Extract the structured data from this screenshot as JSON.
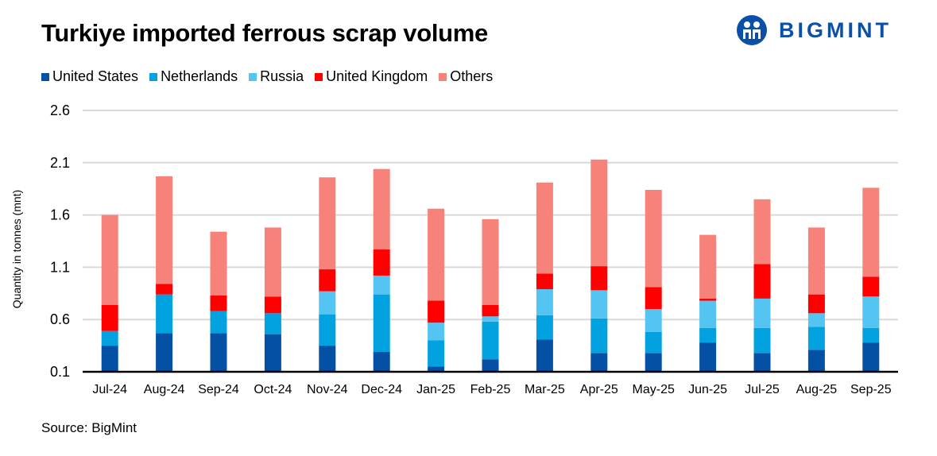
{
  "chart_data": {
    "type": "bar",
    "stacked": true,
    "title": "Turkiye imported ferrous scrap volume",
    "xlabel": "",
    "ylabel": "Quantity in tonnes (mnt)",
    "ylim": [
      0.1,
      2.6
    ],
    "yticks": [
      "0.1",
      "0.6",
      "1.1",
      "1.6",
      "2.1",
      "2.6"
    ],
    "grid": true,
    "legend": "top-left",
    "categories": [
      "Jul-24",
      "Aug-24",
      "Sep-24",
      "Oct-24",
      "Nov-24",
      "Dec-24",
      "Jan-25",
      "Feb-25",
      "Mar-25",
      "Apr-25",
      "May-25",
      "Jun-25",
      "Jul-25",
      "Aug-25",
      "Sep-25"
    ],
    "series": [
      {
        "name": "United States",
        "color": "#0450a4",
        "values": [
          0.35,
          0.47,
          0.47,
          0.46,
          0.35,
          0.29,
          0.15,
          0.22,
          0.41,
          0.28,
          0.28,
          0.38,
          0.28,
          0.31,
          0.38
        ]
      },
      {
        "name": "Netherlands",
        "color": "#02a2e0",
        "values": [
          0.14,
          0.37,
          0.21,
          0.2,
          0.3,
          0.55,
          0.25,
          0.36,
          0.23,
          0.33,
          0.2,
          0.14,
          0.24,
          0.22,
          0.14
        ]
      },
      {
        "name": "Russia",
        "color": "#54c4f2",
        "values": [
          0,
          0,
          0,
          0,
          0.22,
          0.18,
          0.17,
          0.05,
          0.25,
          0.27,
          0.22,
          0.26,
          0.28,
          0.13,
          0.3
        ]
      },
      {
        "name": "United Kingdom",
        "color": "#ff0000",
        "values": [
          0.25,
          0.1,
          0.15,
          0.16,
          0.21,
          0.25,
          0.21,
          0.11,
          0.15,
          0.23,
          0.21,
          0.02,
          0.33,
          0.18,
          0.19
        ]
      },
      {
        "name": "Others",
        "color": "#f6827a",
        "values": [
          0.86,
          1.03,
          0.61,
          0.66,
          0.88,
          0.77,
          0.88,
          0.82,
          0.87,
          1.02,
          0.93,
          0.61,
          0.62,
          0.64,
          0.85
        ]
      }
    ]
  },
  "source": "Source: BigMint",
  "logo": {
    "text": "BIGMINT",
    "color": "#0a4fa8"
  }
}
